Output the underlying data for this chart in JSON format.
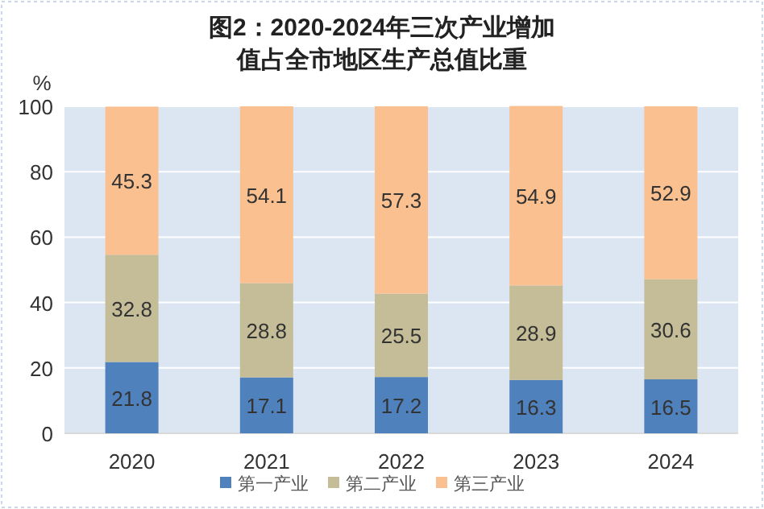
{
  "chart_data": {
    "type": "bar",
    "title": "图2：2020-2024年三次产业增加值占全市地区生产总值比重",
    "ylabel": "%",
    "categories": [
      "2020",
      "2021",
      "2022",
      "2023",
      "2024"
    ],
    "series": [
      {
        "name": "第一产业",
        "color": "#4f81bd",
        "values": [
          21.8,
          17.1,
          17.2,
          16.3,
          16.5
        ]
      },
      {
        "name": "第二产业",
        "color": "#c4bd97",
        "values": [
          32.8,
          28.8,
          25.5,
          28.9,
          30.6
        ]
      },
      {
        "name": "第三产业",
        "color": "#fac090",
        "values": [
          45.3,
          54.1,
          57.3,
          54.9,
          52.9
        ]
      }
    ],
    "stacked": true,
    "ylim": [
      0,
      100
    ],
    "yticks": [
      0,
      20,
      40,
      60,
      80,
      100
    ],
    "grid": "y",
    "legend": "bottom",
    "data_labels": true
  }
}
